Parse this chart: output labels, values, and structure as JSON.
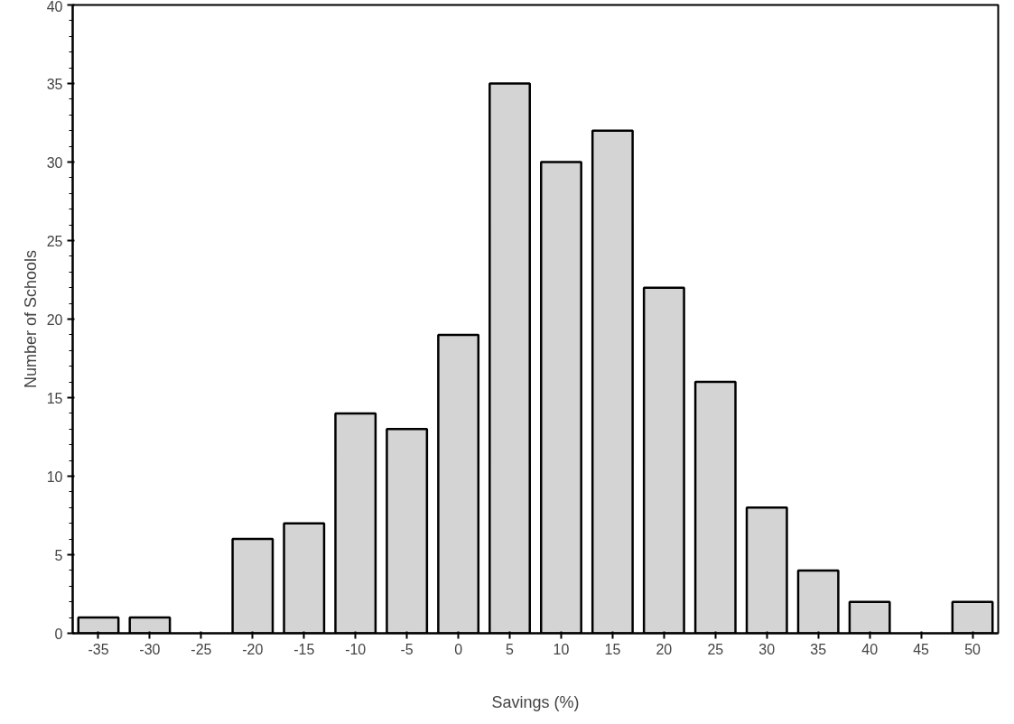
{
  "chart_data": {
    "type": "bar",
    "xlabel": "Savings (%)",
    "ylabel": "Number of Schools",
    "categories": [
      "-35",
      "-30",
      "-25",
      "-20",
      "-15",
      "-10",
      "-5",
      "0",
      "5",
      "10",
      "15",
      "20",
      "25",
      "30",
      "35",
      "40",
      "45",
      "50"
    ],
    "values": [
      1,
      1,
      0,
      6,
      7,
      14,
      13,
      19,
      35,
      30,
      32,
      22,
      16,
      8,
      4,
      2,
      0,
      2
    ],
    "color": "#d4d4d4",
    "ylim": [
      0,
      40
    ],
    "yticks": [
      0,
      5,
      10,
      15,
      20,
      25,
      30,
      35,
      40
    ],
    "grid": false
  }
}
